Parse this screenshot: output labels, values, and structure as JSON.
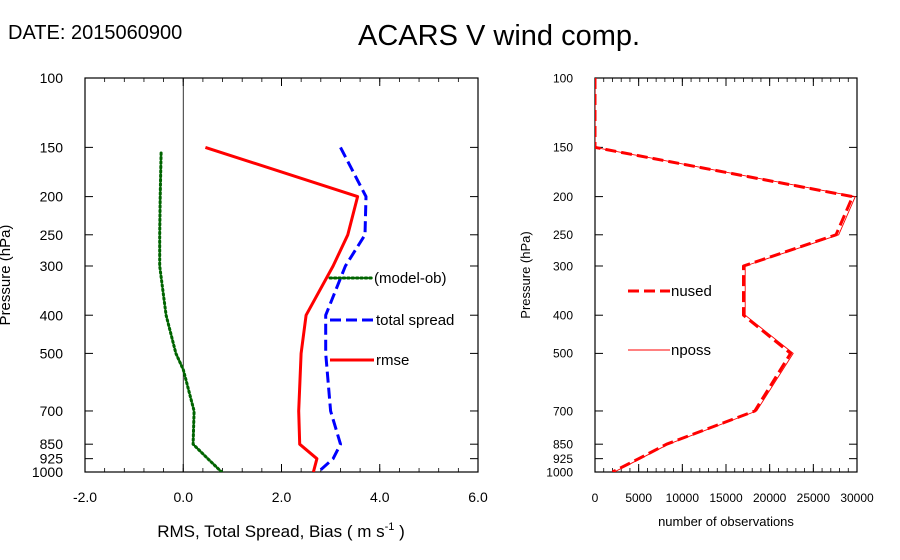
{
  "header": {
    "date_text": "DATE: 2015060900",
    "title": "ACARS V wind comp."
  },
  "chart_data": [
    {
      "type": "line",
      "xlabel_main": "RMS, Total Spread, Bias ( m s",
      "xlabel_exp": "-1",
      "xlabel_tail": " )",
      "ylabel": "Pressure (hPa)",
      "xlim": [
        -2.0,
        6.0
      ],
      "ylim": [
        1000,
        100
      ],
      "yscale": "log",
      "x_ticks": [
        -2.0,
        0.0,
        2.0,
        4.0,
        6.0
      ],
      "x_tick_labels": [
        "-2.0",
        "0.0",
        "2.0",
        "4.0",
        "6.0"
      ],
      "y_ticks": [
        100,
        150,
        200,
        250,
        300,
        400,
        500,
        700,
        850,
        925,
        1000
      ],
      "y_tick_labels": [
        "100",
        "150",
        "200",
        "250",
        "300",
        "400",
        "500",
        "700",
        "850",
        "925",
        "1000"
      ],
      "zero_line": 0.0,
      "series": [
        {
          "name": "(model-ob)",
          "color": "#006400",
          "style": "dotted",
          "points": [
            [
              -0.45,
              155
            ],
            [
              -0.47,
              200
            ],
            [
              -0.48,
              250
            ],
            [
              -0.48,
              300
            ],
            [
              -0.35,
              400
            ],
            [
              -0.15,
              500
            ],
            [
              0.0,
              550
            ],
            [
              0.22,
              700
            ],
            [
              0.2,
              850
            ],
            [
              0.5,
              925
            ],
            [
              0.78,
              1000
            ]
          ]
        },
        {
          "name": "total spread",
          "color": "#0000ff",
          "style": "dashed",
          "points": [
            [
              3.2,
              150
            ],
            [
              3.72,
              200
            ],
            [
              3.7,
              250
            ],
            [
              3.3,
              300
            ],
            [
              2.9,
              400
            ],
            [
              2.9,
              500
            ],
            [
              3.0,
              700
            ],
            [
              3.2,
              850
            ],
            [
              3.05,
              925
            ],
            [
              2.75,
              1000
            ]
          ]
        },
        {
          "name": "rmse",
          "color": "#ff0000",
          "style": "solid",
          "points": [
            [
              0.45,
              150
            ],
            [
              3.55,
              200
            ],
            [
              3.35,
              250
            ],
            [
              3.05,
              300
            ],
            [
              2.5,
              400
            ],
            [
              2.4,
              500
            ],
            [
              2.35,
              700
            ],
            [
              2.37,
              850
            ],
            [
              2.72,
              925
            ],
            [
              2.65,
              1000
            ]
          ]
        }
      ]
    },
    {
      "type": "line",
      "xlabel": "number of observations",
      "ylabel": "Pressure (hPa)",
      "xlim": [
        0,
        30000
      ],
      "ylim": [
        1000,
        100
      ],
      "yscale": "log",
      "x_ticks": [
        0,
        5000,
        10000,
        15000,
        20000,
        25000,
        30000
      ],
      "x_tick_labels": [
        "0",
        "5000",
        "10000",
        "15000",
        "20000",
        "25000",
        "30000"
      ],
      "y_ticks": [
        100,
        150,
        200,
        250,
        300,
        400,
        500,
        700,
        850,
        925,
        1000
      ],
      "y_tick_labels": [
        "100",
        "150",
        "200",
        "250",
        "300",
        "400",
        "500",
        "700",
        "850",
        "925",
        "1000"
      ],
      "series": [
        {
          "name": "nused",
          "color": "#ff0000",
          "style": "dashed",
          "points": [
            [
              0,
              100
            ],
            [
              0,
              150
            ],
            [
              29500,
              200
            ],
            [
              27600,
              250
            ],
            [
              17000,
              300
            ],
            [
              17000,
              400
            ],
            [
              22400,
              500
            ],
            [
              18300,
              700
            ],
            [
              8200,
              850
            ],
            [
              5000,
              925
            ],
            [
              2000,
              1000
            ]
          ]
        },
        {
          "name": "nposs",
          "color": "#ff0000",
          "style": "thin",
          "points": [
            [
              0,
              100
            ],
            [
              0,
              150
            ],
            [
              29800,
              200
            ],
            [
              27900,
              250
            ],
            [
              17200,
              300
            ],
            [
              17200,
              400
            ],
            [
              22700,
              500
            ],
            [
              18500,
              700
            ],
            [
              8400,
              850
            ],
            [
              5200,
              925
            ],
            [
              2200,
              1000
            ]
          ]
        }
      ]
    }
  ]
}
